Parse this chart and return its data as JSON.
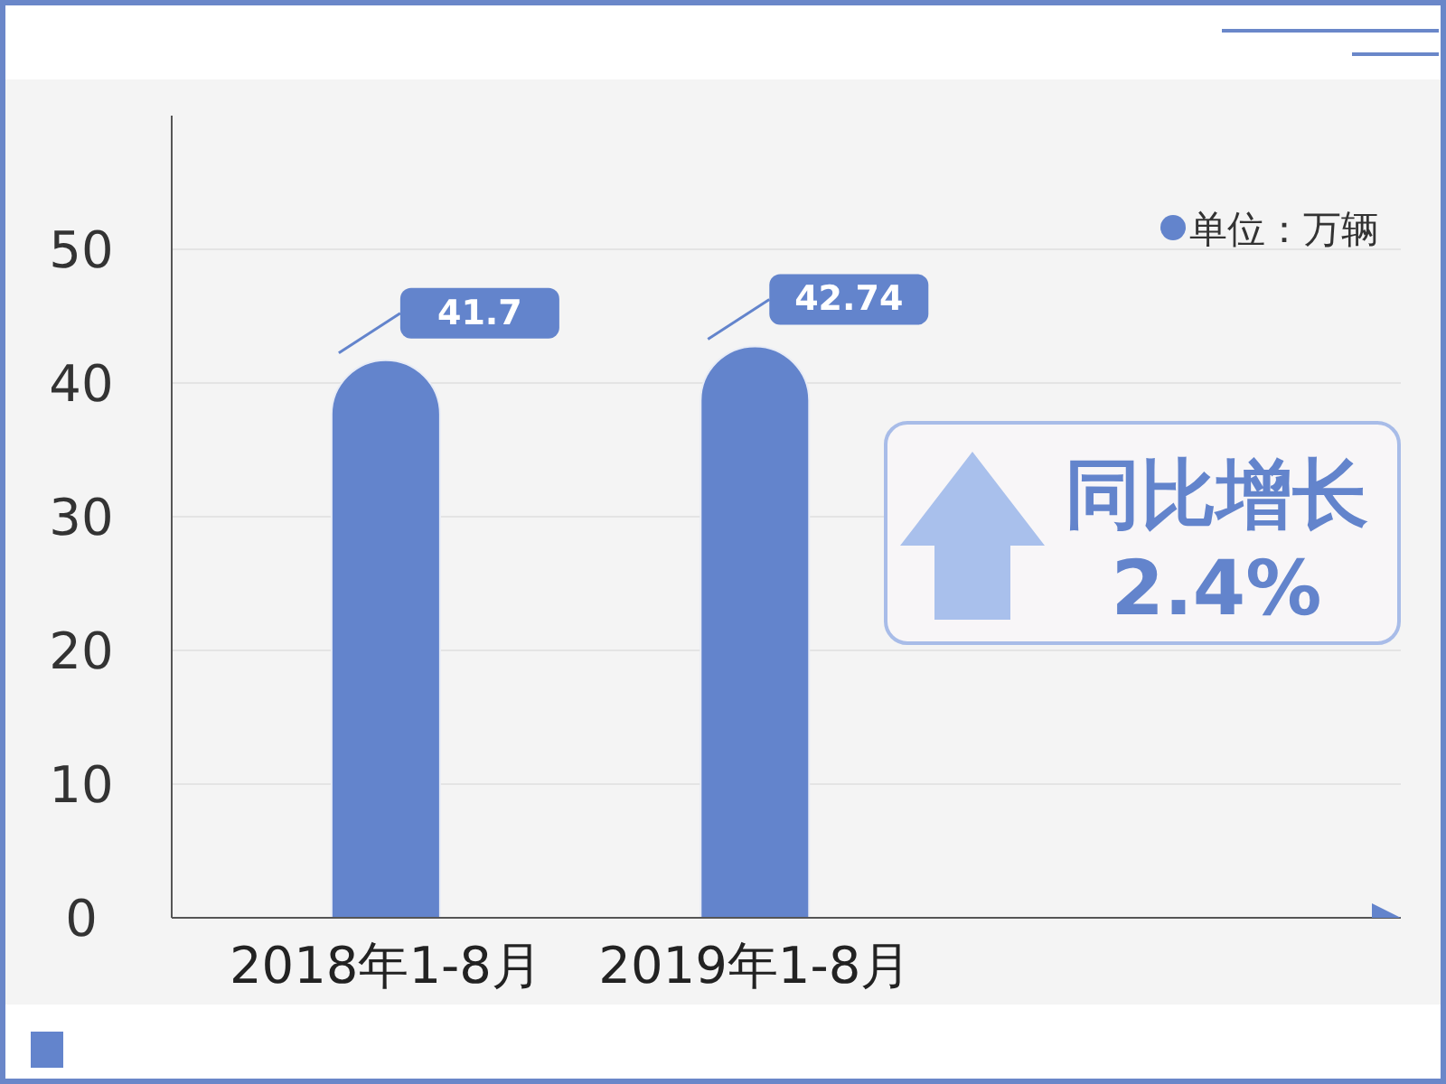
{
  "chart_data": {
    "type": "bar",
    "categories": [
      "2018年1-8月",
      "2019年1-8月"
    ],
    "values": [
      41.7,
      42.74
    ],
    "color": "#6384cc",
    "ylim": [
      0,
      60
    ],
    "yticks": [
      0,
      10,
      20,
      30,
      40,
      50
    ],
    "grid": "y",
    "data_labels": true,
    "annotations": [
      "单位：万辆",
      "同比增长",
      "2.4%"
    ]
  }
}
